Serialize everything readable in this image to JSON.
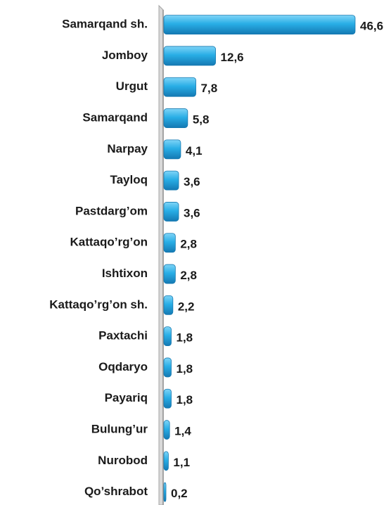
{
  "chart_data": {
    "type": "bar",
    "orientation": "horizontal",
    "categories": [
      "Samarqand sh.",
      "Jomboy",
      "Urgut",
      "Samarqand",
      "Narpay",
      "Tayloq",
      "Pastdarg’om",
      "Kattaqo’rg’on",
      "Ishtixon",
      "Kattaqo’rg’on sh.",
      "Paxtachi",
      "Oqdaryo",
      "Payariq",
      "Bulung’ur",
      "Nurobod",
      "Qo’shrabot"
    ],
    "values": [
      46.6,
      12.6,
      7.8,
      5.8,
      4.1,
      3.6,
      3.6,
      2.8,
      2.8,
      2.2,
      1.8,
      1.8,
      1.8,
      1.4,
      1.1,
      0.2
    ],
    "value_labels": [
      "46,6",
      "12,6",
      "7,8",
      "5,8",
      "4,1",
      "3,6",
      "3,6",
      "2,8",
      "2,8",
      "2,2",
      "1,8",
      "1,8",
      "1,8",
      "1,4",
      "1,1",
      "0,2"
    ],
    "color": "#29aee6"
  }
}
